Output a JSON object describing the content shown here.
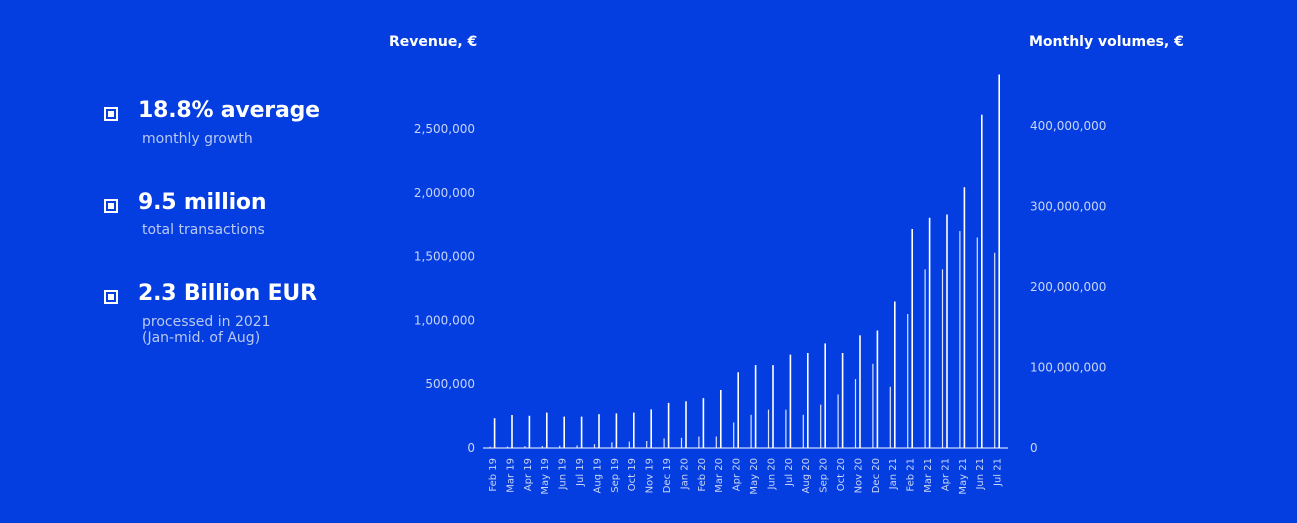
{
  "stats": [
    {
      "title": "18.8% average",
      "subtitle": [
        "monthly growth"
      ]
    },
    {
      "title": "9.5 million",
      "subtitle": [
        "total transactions"
      ]
    },
    {
      "title": "2.3 Billion EUR",
      "subtitle": [
        "processed in 2021",
        "(Jan-mid. of Aug)"
      ]
    }
  ],
  "colors": {
    "background": "#043ee0",
    "bars": "#ffffff",
    "axis_text": "#c9d5f7"
  },
  "chart_data": {
    "type": "bar",
    "left_axis_label": "Revenue, €",
    "right_axis_label": "Monthly volumes, €",
    "left_ticks": [
      "0",
      "500,000",
      "1,000,000",
      "1,500,000",
      "2,000,000",
      "2,500,000"
    ],
    "left_tick_values": [
      0,
      500000,
      1000000,
      1500000,
      2000000,
      2500000
    ],
    "right_ticks": [
      "0",
      "100,000,000",
      "200,000,000",
      "300,000,000",
      "400,000,000"
    ],
    "right_tick_values": [
      0,
      100000000,
      200000000,
      300000000,
      400000000
    ],
    "categories": [
      "Feb 19",
      "Mar 19",
      "Apr 19",
      "May 19",
      "Jun 19",
      "Jul 19",
      "Aug 19",
      "Sep 19",
      "Oct 19",
      "Nov 19",
      "Dec 19",
      "Jan 20",
      "Feb 20",
      "Mar 20",
      "Apr 20",
      "May 20",
      "Jun 20",
      "Jul 20",
      "Aug 20",
      "Sep 20",
      "Oct 20",
      "Nov 20",
      "Dec 20",
      "Jan 21",
      "Feb 21",
      "Mar 21",
      "Apr 21",
      "May 21",
      "Jun 21",
      "Jul 21"
    ],
    "series": [
      {
        "axis": "left",
        "values": [
          10000,
          12000,
          14000,
          16000,
          18000,
          20000,
          30000,
          45000,
          50000,
          55000,
          75000,
          80000,
          90000,
          90000,
          200000,
          260000,
          300000,
          300000,
          260000,
          340000,
          420000,
          540000,
          660000,
          480000,
          1050000,
          1400000,
          1400000,
          1700000,
          1650000,
          1530000
        ]
      },
      {
        "axis": "right",
        "values": [
          37000000,
          41000000,
          40000000,
          44000000,
          39000000,
          39000000,
          42000000,
          43000000,
          44000000,
          48000000,
          56000000,
          58000000,
          62000000,
          72000000,
          94000000,
          103000000,
          103000000,
          116000000,
          118000000,
          130000000,
          118000000,
          140000000,
          146000000,
          182000000,
          272000000,
          286000000,
          290000000,
          324000000,
          414000000,
          464000000
        ]
      }
    ]
  }
}
